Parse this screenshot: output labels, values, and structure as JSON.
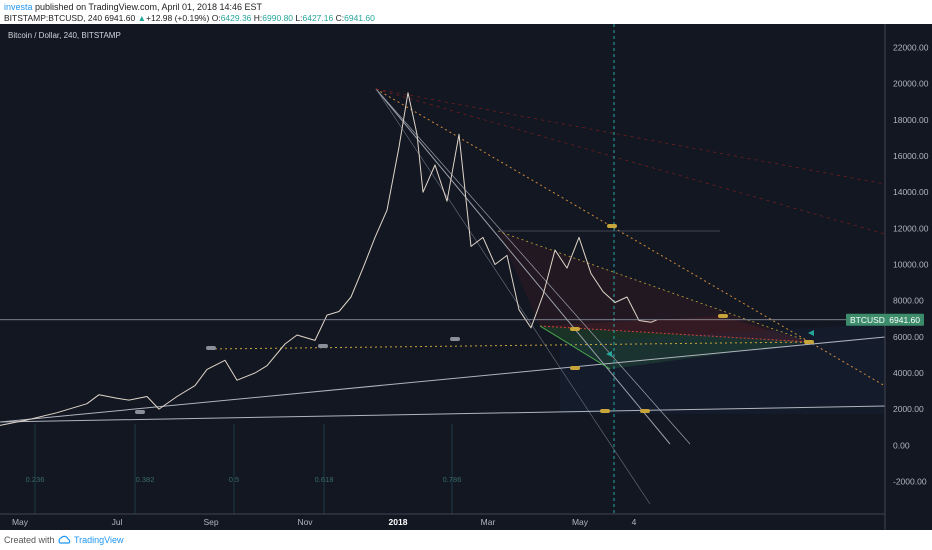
{
  "header": {
    "author": "investa",
    "published": " published on TradingView.com, April 01, 2018 14:46 EST",
    "symbol": "BITSTAMP:BTCUSD, 240",
    "last": "6941.60",
    "arrow": "▲",
    "change": "+12.98 (+0.19%)",
    "o_label": "O:",
    "o_val": "6429.36",
    "h_label": "H:",
    "h_val": "6990.80",
    "l_label": "L:",
    "l_val": "6427.16",
    "c_label": "C:",
    "c_val": "6941.60"
  },
  "chart_title": "Bitcoin / Dollar, 240, BITSTAMP",
  "price_tag": {
    "symbol": "BTCUSD",
    "value": "6941.60",
    "color": "#3c8c6c"
  },
  "footer": {
    "created_with": "Created with",
    "brand": "TradingView"
  },
  "fib_labels": [
    "0.236",
    "0.382",
    "0.5",
    "0.618",
    "0.786"
  ],
  "chart_data": {
    "type": "line",
    "title": "Bitcoin / Dollar, 240, BITSTAMP",
    "x_tick_labels": [
      "May",
      "Jul",
      "Sep",
      "Nov",
      "2018",
      "Mar",
      "May",
      "4"
    ],
    "y_tick_labels": [
      "22000.00",
      "20000.00",
      "18000.00",
      "16000.00",
      "14000.00",
      "12000.00",
      "10000.00",
      "8000.00",
      "6000.00",
      "4000.00",
      "2000.00",
      "0.00",
      "-2000.00"
    ],
    "ylim": [
      -3800,
      23300
    ],
    "x_unit": "months since 2017-05-01",
    "x_range": [
      -0.45,
      14.3
    ],
    "series": [
      {
        "name": "BTCUSD",
        "x": [
          -0.45,
          0.0,
          0.5,
          1.0,
          1.2,
          1.5,
          1.7,
          2.0,
          2.2,
          2.5,
          2.8,
          3.0,
          3.3,
          3.5,
          3.8,
          4.0,
          4.3,
          4.5,
          4.8,
          5.0,
          5.2,
          5.4,
          5.6,
          5.8,
          6.0,
          6.2,
          6.35,
          6.5,
          6.6,
          6.8,
          7.0,
          7.2,
          7.4,
          7.6,
          7.8,
          8.0,
          8.2,
          8.4,
          8.6,
          8.8,
          9.0,
          9.2,
          9.4,
          9.6,
          9.8,
          10.0,
          10.2,
          10.4,
          10.5
        ],
        "y": [
          1100,
          1400,
          1800,
          2300,
          2800,
          2600,
          2500,
          2700,
          2000,
          2700,
          3300,
          4200,
          4700,
          3600,
          4000,
          4400,
          5600,
          6100,
          5800,
          7200,
          7400,
          8200,
          9800,
          11500,
          13000,
          16500,
          19500,
          17200,
          14000,
          15500,
          13500,
          17200,
          11000,
          11500,
          10000,
          10500,
          7500,
          6500,
          8300,
          10800,
          9800,
          11500,
          9500,
          8500,
          7900,
          8200,
          6900,
          6800,
          6941.6
        ]
      }
    ],
    "current_price": 6941.6
  }
}
